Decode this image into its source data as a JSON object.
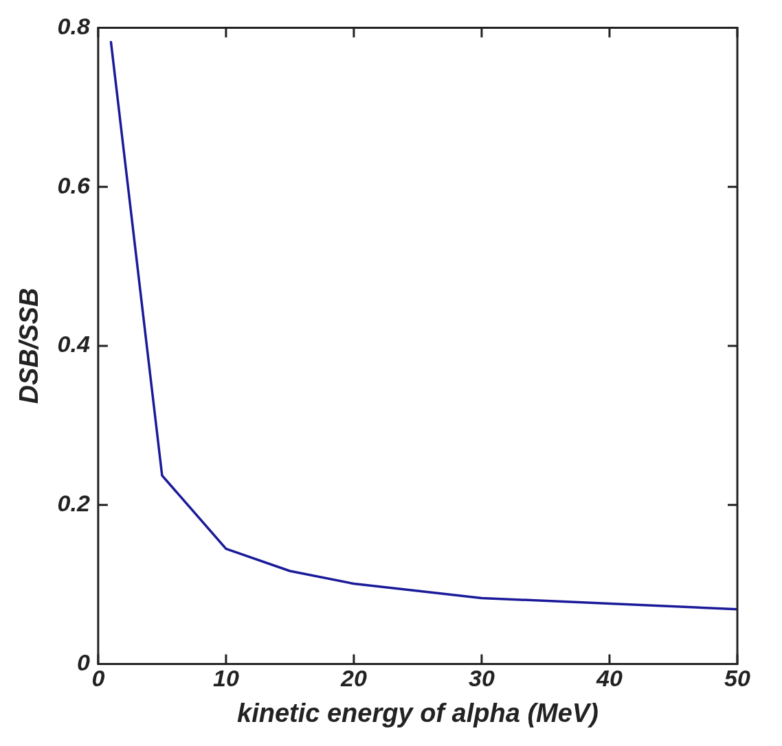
{
  "chart_data": {
    "type": "line",
    "xlabel": "kinetic energy of alpha (MeV)",
    "ylabel": "DSB/SSB",
    "x": [
      1,
      5,
      10,
      15,
      20,
      30,
      50
    ],
    "series": [
      {
        "color": "#1a1a9a",
        "values": [
          0.782,
          0.237,
          0.145,
          0.117,
          0.101,
          0.083,
          0.069
        ]
      }
    ],
    "xlim": [
      0,
      50
    ],
    "xticks": [
      0,
      10,
      20,
      30,
      40,
      50
    ],
    "ylim": [
      0,
      0.8
    ],
    "yticks": [
      0,
      0.2,
      0.4,
      0.6,
      0.8
    ],
    "grid": false,
    "legend": false,
    "marker": "none",
    "line_style": "solid"
  }
}
